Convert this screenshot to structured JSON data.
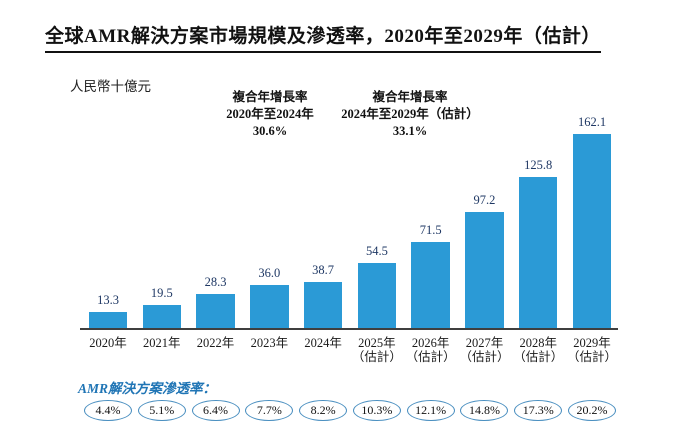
{
  "title": "全球AMR解決方案市場規模及滲透率，2020年至2029年（估計）",
  "unit_label": "人民幣十億元",
  "cagr": [
    {
      "line1": "複合年增長率",
      "line2": "2020年至2024年",
      "value": "30.6%"
    },
    {
      "line1": "複合年增長率",
      "line2": "2024年至2029年（估計）",
      "value": "33.1%"
    }
  ],
  "chart_data": {
    "type": "bar",
    "title": "全球AMR解決方案市場規模及滲透率，2020年至2029年（估計）",
    "ylabel": "人民幣十億元",
    "ylim": [
      0,
      170
    ],
    "grid": false,
    "legend": "none",
    "categories": [
      {
        "label": "2020年",
        "note": ""
      },
      {
        "label": "2021年",
        "note": ""
      },
      {
        "label": "2022年",
        "note": ""
      },
      {
        "label": "2023年",
        "note": ""
      },
      {
        "label": "2024年",
        "note": ""
      },
      {
        "label": "2025年",
        "note": "（估計）"
      },
      {
        "label": "2026年",
        "note": "（估計）"
      },
      {
        "label": "2027年",
        "note": "（估計）"
      },
      {
        "label": "2028年",
        "note": "（估計）"
      },
      {
        "label": "2029年",
        "note": "（估計）"
      }
    ],
    "values": [
      13.3,
      19.5,
      28.3,
      36.0,
      38.7,
      54.5,
      71.5,
      97.2,
      125.8,
      162.1
    ],
    "value_labels": [
      "13.3",
      "19.5",
      "28.3",
      "36.0",
      "38.7",
      "54.5",
      "71.5",
      "97.2",
      "125.8",
      "162.1"
    ],
    "penetration_label": "AMR解決方案滲透率：",
    "penetration_rates": [
      "4.4%",
      "5.1%",
      "6.4%",
      "7.7%",
      "8.2%",
      "10.3%",
      "12.1%",
      "14.8%",
      "17.3%",
      "20.2%"
    ]
  },
  "colors": {
    "bar": "#2b9ad6",
    "axis": "#3f3f3f",
    "value_label": "#1f3864",
    "penetration_accent": "#2075b5",
    "ellipse_border": "#4a8fc0",
    "text": "#1a1a1a"
  }
}
